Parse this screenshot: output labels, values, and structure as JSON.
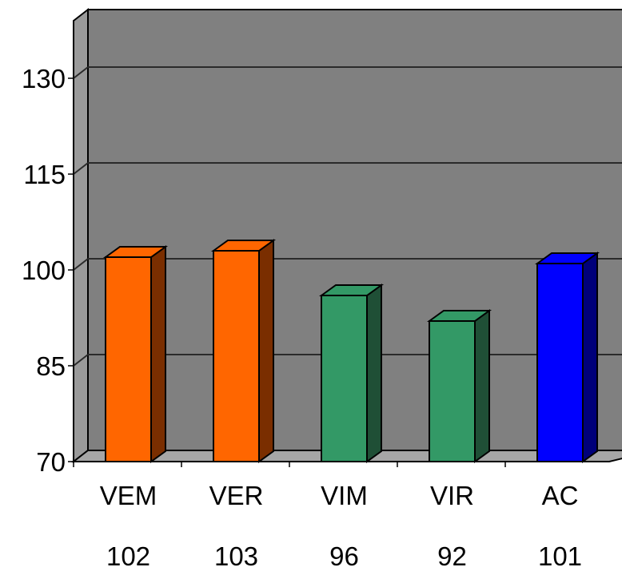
{
  "chart_data": {
    "type": "bar",
    "categories": [
      "VEM",
      "VER",
      "VIM",
      "VIR",
      "AC"
    ],
    "values": [
      102,
      103,
      96,
      92,
      101
    ],
    "value_labels": [
      "102",
      "103",
      "96",
      "92",
      "101"
    ],
    "yticks": [
      70,
      85,
      100,
      115,
      130
    ],
    "ytick_labels": [
      "70",
      "85",
      "100",
      "115",
      "130"
    ],
    "ylim": [
      70,
      140
    ],
    "grid": true,
    "legend": "none",
    "colors": {
      "plot_back": "#808080",
      "plot_side": "#9a9a9a",
      "floor": "#a6a6a6",
      "grid": "#2a2a2a",
      "bars": [
        {
          "front": "#ff6600",
          "top": "#ff6600",
          "side": "#7a2e00"
        },
        {
          "front": "#ff6600",
          "top": "#ff6600",
          "side": "#7a2e00"
        },
        {
          "front": "#339966",
          "top": "#339966",
          "side": "#1f4f36"
        },
        {
          "front": "#339966",
          "top": "#339966",
          "side": "#1f4f36"
        },
        {
          "front": "#0000ff",
          "top": "#0000ff",
          "side": "#00007a"
        }
      ]
    }
  }
}
